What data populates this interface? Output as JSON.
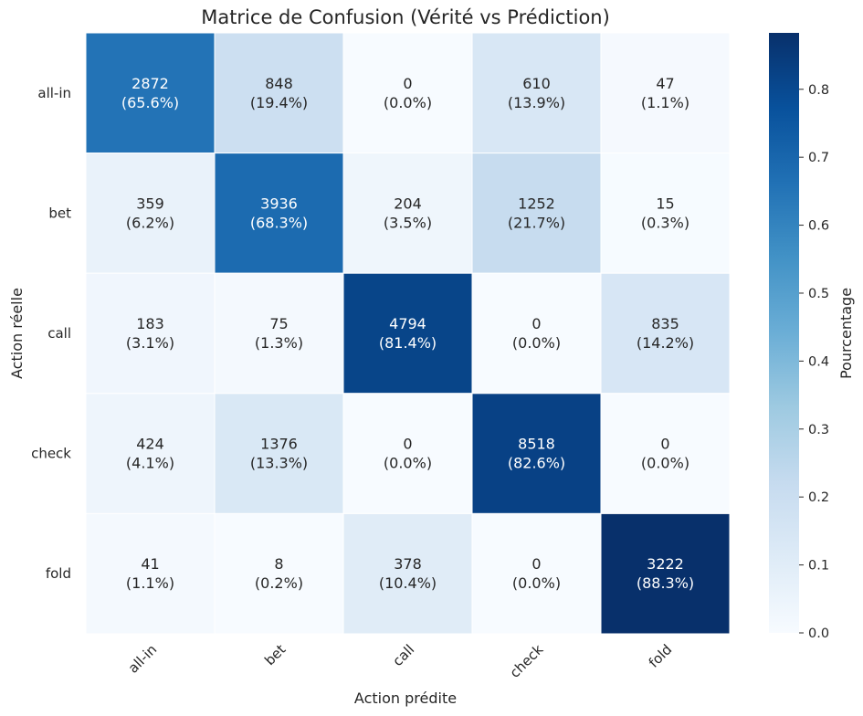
{
  "chart_data": {
    "type": "heatmap",
    "title": "Matrice de Confusion (Vérité vs Prédiction)",
    "xlabel": "Action prédite",
    "ylabel": "Action réelle",
    "x_categories": [
      "all-in",
      "bet",
      "call",
      "check",
      "fold"
    ],
    "y_categories": [
      "all-in",
      "bet",
      "call",
      "check",
      "fold"
    ],
    "counts": [
      [
        2872,
        848,
        0,
        610,
        47
      ],
      [
        359,
        3936,
        204,
        1252,
        15
      ],
      [
        183,
        75,
        4794,
        0,
        835
      ],
      [
        424,
        1376,
        0,
        8518,
        0
      ],
      [
        41,
        8,
        378,
        0,
        3222
      ]
    ],
    "percentages": [
      [
        "(65.6%)",
        "(19.4%)",
        "(0.0%)",
        "(13.9%)",
        "(1.1%)"
      ],
      [
        "(6.2%)",
        "(68.3%)",
        "(3.5%)",
        "(21.7%)",
        "(0.3%)"
      ],
      [
        "(3.1%)",
        "(1.3%)",
        "(81.4%)",
        "(0.0%)",
        "(14.2%)"
      ],
      [
        "(4.1%)",
        "(13.3%)",
        "(0.0%)",
        "(82.6%)",
        "(0.0%)"
      ],
      [
        "(1.1%)",
        "(0.2%)",
        "(10.4%)",
        "(0.0%)",
        "(88.3%)"
      ]
    ],
    "colorbar": {
      "label": "Pourcentage",
      "range": [
        0,
        0.883
      ],
      "ticks": [
        "0.0",
        "0.1",
        "0.2",
        "0.3",
        "0.4",
        "0.5",
        "0.6",
        "0.7",
        "0.8"
      ],
      "colormap": "Blues"
    }
  }
}
